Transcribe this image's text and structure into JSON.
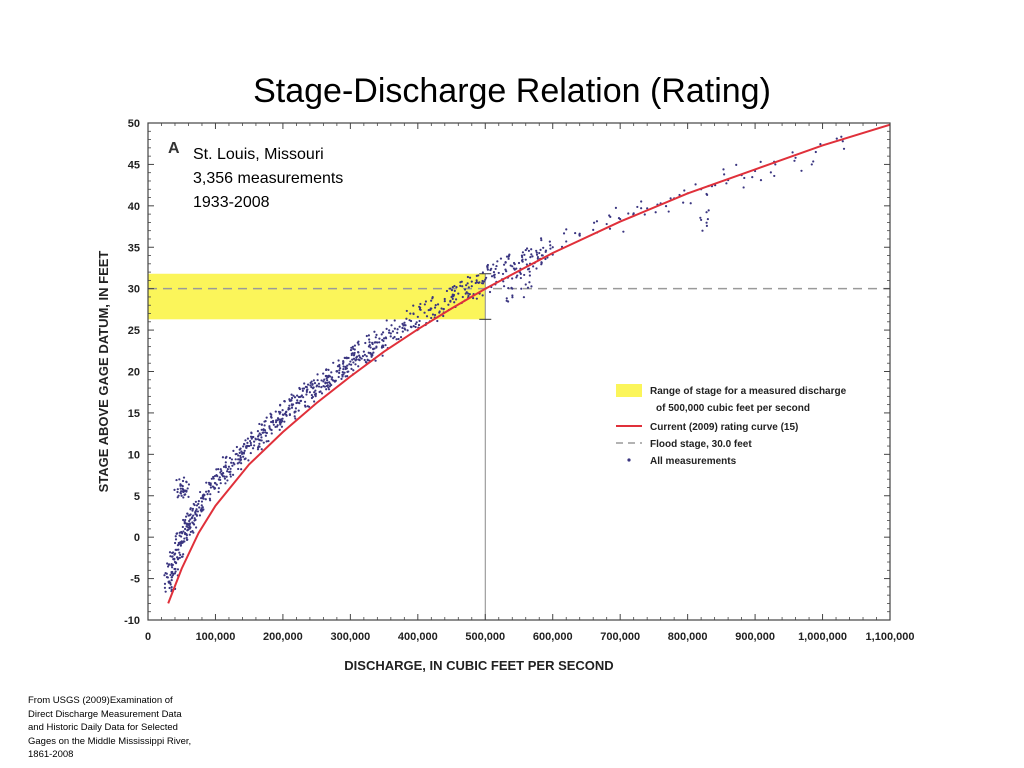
{
  "slide": {
    "title": "Stage-Discharge Relation (Rating)",
    "source_note": "From USGS (2009)Examination of Direct Discharge Measurement Data and Historic Daily Data for Selected Gages on the Middle Mississippi River, 1861-2008"
  },
  "chart_data": {
    "type": "scatter",
    "panel_label": "A",
    "annotation": [
      "St. Louis, Missouri",
      "3,356 measurements",
      "1933-2008"
    ],
    "xlabel": "DISCHARGE, IN CUBIC FEET PER SECOND",
    "ylabel": "STAGE ABOVE GAGE DATUM, IN FEET",
    "xlim": [
      0,
      1100000
    ],
    "ylim": [
      -10,
      50
    ],
    "x_ticks": [
      0,
      100000,
      200000,
      300000,
      400000,
      500000,
      600000,
      700000,
      800000,
      900000,
      1000000,
      1100000
    ],
    "x_tick_labels": [
      "0",
      "100,000",
      "200,000",
      "300,000",
      "400,000",
      "500,000",
      "600,000",
      "700,000",
      "800,000",
      "900,000",
      "1,000,000",
      "1,100,000"
    ],
    "y_ticks": [
      -10,
      -5,
      0,
      5,
      10,
      15,
      20,
      25,
      30,
      35,
      40,
      45,
      50
    ],
    "y_tick_labels": [
      "-10",
      "-5",
      "0",
      "5",
      "10",
      "15",
      "20",
      "25",
      "30",
      "35",
      "40",
      "45",
      "50"
    ],
    "grid": false,
    "legend_position": "right-center",
    "colors": {
      "points": "#3a3580",
      "rating_curve": "#e0303a",
      "flood_stage": "#9a9a9a",
      "highlight": "#fbf55a",
      "reference_line": "#8a8a8a"
    },
    "highlight_band": {
      "x_range": [
        0,
        500000
      ],
      "y_range": [
        26.3,
        31.8
      ]
    },
    "reference_discharge": 500000,
    "flood_stage": 30.0,
    "rating_curve": {
      "x": [
        30000,
        50000,
        75000,
        100000,
        150000,
        200000,
        250000,
        300000,
        350000,
        400000,
        450000,
        500000,
        600000,
        700000,
        800000,
        900000,
        1000000,
        1100000
      ],
      "y": [
        -8.0,
        -3.8,
        0.5,
        3.8,
        8.8,
        12.7,
        16.2,
        19.4,
        22.4,
        25.1,
        27.6,
        30.0,
        34.3,
        38.1,
        41.5,
        44.4,
        47.3,
        49.8
      ]
    },
    "measurements_sample": {
      "x": [
        32000,
        36000,
        40000,
        45000,
        50000,
        55000,
        60000,
        65000,
        70000,
        80000,
        90000,
        100000,
        110000,
        120000,
        130000,
        140000,
        150000,
        160000,
        170000,
        180000,
        190000,
        200000,
        210000,
        220000,
        230000,
        240000,
        250000,
        260000,
        270000,
        280000,
        290000,
        300000,
        310000,
        320000,
        330000,
        340000,
        350000,
        360000,
        370000,
        380000,
        390000,
        400000,
        410000,
        420000,
        430000,
        440000,
        450000,
        460000,
        470000,
        480000,
        490000,
        500000,
        510000,
        520000,
        530000,
        540000,
        550000,
        560000,
        570000,
        580000,
        590000,
        600000,
        620000,
        640000,
        660000,
        680000,
        700000,
        720000,
        740000,
        760000,
        780000,
        800000,
        820000,
        840000,
        860000,
        880000,
        900000,
        930000,
        960000,
        990000,
        1030000,
        48000,
        52000,
        830000,
        820000,
        560000,
        540000
      ],
      "y": [
        -5.5,
        -4.2,
        -3.0,
        -1.5,
        -0.5,
        0.5,
        1.5,
        2.3,
        3.0,
        4.3,
        5.5,
        6.5,
        7.5,
        8.5,
        9.4,
        10.2,
        11.0,
        11.8,
        12.6,
        13.4,
        14.1,
        14.8,
        15.5,
        16.2,
        16.9,
        17.5,
        18.2,
        18.8,
        19.4,
        20.0,
        20.6,
        21.2,
        21.8,
        22.4,
        22.9,
        23.5,
        24.0,
        24.6,
        25.1,
        25.6,
        26.1,
        26.6,
        27.1,
        27.6,
        28.1,
        28.5,
        29.0,
        29.4,
        29.9,
        30.3,
        30.7,
        31.1,
        31.5,
        31.9,
        32.3,
        32.7,
        33.1,
        33.5,
        33.9,
        34.3,
        34.6,
        35.0,
        35.7,
        36.4,
        37.1,
        37.8,
        38.4,
        39.1,
        39.7,
        40.3,
        40.9,
        41.5,
        42.0,
        42.6,
        43.1,
        43.7,
        44.2,
        45.0,
        45.8,
        46.5,
        47.8,
        6.2,
        5.5,
        38.4,
        38.3,
        30.5,
        30.0
      ]
    },
    "legend": [
      {
        "type": "band",
        "label": "Range of stage for a measured discharge",
        "label2": "of 500,000 cubic feet per second"
      },
      {
        "type": "line",
        "label": "Current (2009) rating curve (15)"
      },
      {
        "type": "dashed",
        "label": "Flood stage, 30.0 feet"
      },
      {
        "type": "point",
        "label": "All measurements"
      }
    ]
  }
}
